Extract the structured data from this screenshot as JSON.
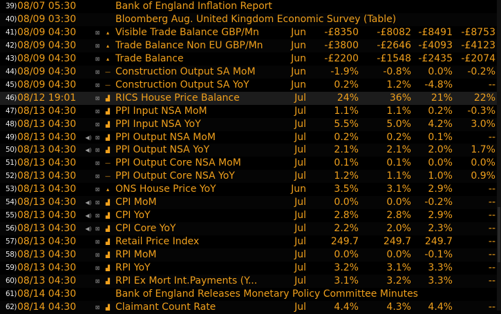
{
  "colors": {
    "accent": "#f0a01c",
    "background": "#000000",
    "highlight_row": "#1c1c1c"
  },
  "rows": [
    {
      "num": "39)",
      "date": "08/07 05:30",
      "name": "Bank of England Inflation Report",
      "period": "",
      "v1": "",
      "v2": "",
      "v3": "",
      "v4": "",
      "spk": "",
      "ico": "",
      "ind": "",
      "type": "header"
    },
    {
      "num": "40)",
      "date": "08/09 03:30",
      "name": "Bloomberg Aug. United Kingdom Economic Survey (Table)",
      "period": "",
      "v1": "",
      "v2": "",
      "v3": "",
      "v4": "",
      "spk": "",
      "ico": "",
      "ind": "",
      "type": "header"
    },
    {
      "num": "41)",
      "date": "08/09 04:30",
      "name": "Visible Trade Balance GBP/Mn",
      "period": "Jun",
      "v1": "-£8350",
      "v2": "-£8082",
      "v3": "-£8491",
      "v4": "-£8753",
      "spk": "",
      "ico": "⊠",
      "ind": "▴",
      "type": "data"
    },
    {
      "num": "42)",
      "date": "08/09 04:30",
      "name": "Trade Balance Non EU GBP/Mn",
      "period": "Jun",
      "v1": "-£3800",
      "v2": "-£2646",
      "v3": "-£4093",
      "v4": "-£4123",
      "spk": "",
      "ico": "⊠",
      "ind": "▴",
      "type": "data"
    },
    {
      "num": "43)",
      "date": "08/09 04:30",
      "name": "Trade Balance",
      "period": "Jun",
      "v1": "-£2200",
      "v2": "-£1548",
      "v3": "-£2435",
      "v4": "-£2074",
      "spk": "",
      "ico": "⊠",
      "ind": "▴",
      "type": "data"
    },
    {
      "num": "44)",
      "date": "08/09 04:30",
      "name": "Construction Output SA MoM",
      "period": "Jun",
      "v1": "-1.9%",
      "v2": "-0.8%",
      "v3": "0.0%",
      "v4": "-0.2%",
      "spk": "",
      "ico": "⊠",
      "ind": "—",
      "type": "data"
    },
    {
      "num": "45)",
      "date": "08/09 04:30",
      "name": "Construction Output SA YoY",
      "period": "Jun",
      "v1": "0.2%",
      "v2": "1.2%",
      "v3": "-4.8%",
      "v4": "--",
      "spk": "",
      "ico": "⊠",
      "ind": "—",
      "type": "data"
    },
    {
      "num": "46)",
      "date": "08/12 19:01",
      "name": "RICS House Price Balance",
      "period": "Jul",
      "v1": "24%",
      "v2": "36%",
      "v3": "21%",
      "v4": "22%",
      "spk": "",
      "ico": "⊠",
      "ind": "▟",
      "type": "data",
      "highlight": true
    },
    {
      "num": "47)",
      "date": "08/13 04:30",
      "name": "PPI Input NSA MoM",
      "period": "Jul",
      "v1": "1.1%",
      "v2": "1.1%",
      "v3": "0.2%",
      "v4": "-0.3%",
      "spk": "",
      "ico": "⊠",
      "ind": "▟",
      "type": "data"
    },
    {
      "num": "48)",
      "date": "08/13 04:30",
      "name": "PPI Input NSA YoY",
      "period": "Jul",
      "v1": "5.5%",
      "v2": "5.0%",
      "v3": "4.2%",
      "v4": "3.0%",
      "spk": "",
      "ico": "⊠",
      "ind": "▟",
      "type": "data"
    },
    {
      "num": "49)",
      "date": "08/13 04:30",
      "name": "PPI Output NSA MoM",
      "period": "Jul",
      "v1": "0.2%",
      "v2": "0.2%",
      "v3": "0.1%",
      "v4": "--",
      "spk": "◀)",
      "ico": "⊠",
      "ind": "▟",
      "type": "data"
    },
    {
      "num": "50)",
      "date": "08/13 04:30",
      "name": "PPI Output NSA YoY",
      "period": "Jul",
      "v1": "2.1%",
      "v2": "2.1%",
      "v3": "2.0%",
      "v4": "1.7%",
      "spk": "◀)",
      "ico": "⊠",
      "ind": "▟",
      "type": "data"
    },
    {
      "num": "51)",
      "date": "08/13 04:30",
      "name": "PPI Output Core NSA MoM",
      "period": "Jul",
      "v1": "0.1%",
      "v2": "0.1%",
      "v3": "0.0%",
      "v4": "0.0%",
      "spk": "",
      "ico": "⊠",
      "ind": "—",
      "type": "data"
    },
    {
      "num": "52)",
      "date": "08/13 04:30",
      "name": "PPI Output Core NSA YoY",
      "period": "Jul",
      "v1": "1.2%",
      "v2": "1.1%",
      "v3": "1.0%",
      "v4": "0.9%",
      "spk": "",
      "ico": "⊠",
      "ind": "—",
      "type": "data"
    },
    {
      "num": "53)",
      "date": "08/13 04:30",
      "name": "ONS House Price YoY",
      "period": "Jun",
      "v1": "3.5%",
      "v2": "3.1%",
      "v3": "2.9%",
      "v4": "--",
      "spk": "",
      "ico": "⊠",
      "ind": "▴",
      "type": "data"
    },
    {
      "num": "54)",
      "date": "08/13 04:30",
      "name": "CPI MoM",
      "period": "Jul",
      "v1": "0.0%",
      "v2": "0.0%",
      "v3": "-0.2%",
      "v4": "--",
      "spk": "◀)",
      "ico": "⊠",
      "ind": "▟",
      "type": "data"
    },
    {
      "num": "55)",
      "date": "08/13 04:30",
      "name": "CPI YoY",
      "period": "Jul",
      "v1": "2.8%",
      "v2": "2.8%",
      "v3": "2.9%",
      "v4": "--",
      "spk": "◀)",
      "ico": "⊠",
      "ind": "▟",
      "type": "data"
    },
    {
      "num": "56)",
      "date": "08/13 04:30",
      "name": "CPI Core YoY",
      "period": "Jul",
      "v1": "2.2%",
      "v2": "2.0%",
      "v3": "2.3%",
      "v4": "--",
      "spk": "◀)",
      "ico": "⊠",
      "ind": "▟",
      "type": "data"
    },
    {
      "num": "57)",
      "date": "08/13 04:30",
      "name": "Retail Price Index",
      "period": "Jul",
      "v1": "249.7",
      "v2": "249.7",
      "v3": "249.7",
      "v4": "--",
      "spk": "",
      "ico": "⊠",
      "ind": "▟",
      "type": "data"
    },
    {
      "num": "58)",
      "date": "08/13 04:30",
      "name": "RPI MoM",
      "period": "Jul",
      "v1": "0.0%",
      "v2": "0.0%",
      "v3": "-0.1%",
      "v4": "--",
      "spk": "",
      "ico": "⊠",
      "ind": "▟",
      "type": "data"
    },
    {
      "num": "59)",
      "date": "08/13 04:30",
      "name": "RPI YoY",
      "period": "Jul",
      "v1": "3.2%",
      "v2": "3.1%",
      "v3": "3.3%",
      "v4": "--",
      "spk": "",
      "ico": "⊠",
      "ind": "▟",
      "type": "data"
    },
    {
      "num": "60)",
      "date": "08/13 04:30",
      "name": "RPI Ex Mort Int.Payments (Y...",
      "period": "Jul",
      "v1": "3.1%",
      "v2": "3.2%",
      "v3": "3.3%",
      "v4": "--",
      "spk": "",
      "ico": "⊠",
      "ind": "▟",
      "type": "data"
    },
    {
      "num": "61)",
      "date": "08/14 04:30",
      "name": "Bank of England Releases Monetary Policy Committee Minutes",
      "period": "",
      "v1": "",
      "v2": "",
      "v3": "",
      "v4": "",
      "spk": "",
      "ico": "",
      "ind": "",
      "type": "header"
    },
    {
      "num": "62)",
      "date": "08/14 04:30",
      "name": "Claimant Count Rate",
      "period": "Jul",
      "v1": "4.4%",
      "v2": "4.3%",
      "v3": "4.4%",
      "v4": "--",
      "spk": "",
      "ico": "⊠",
      "ind": "▟",
      "type": "data"
    }
  ]
}
